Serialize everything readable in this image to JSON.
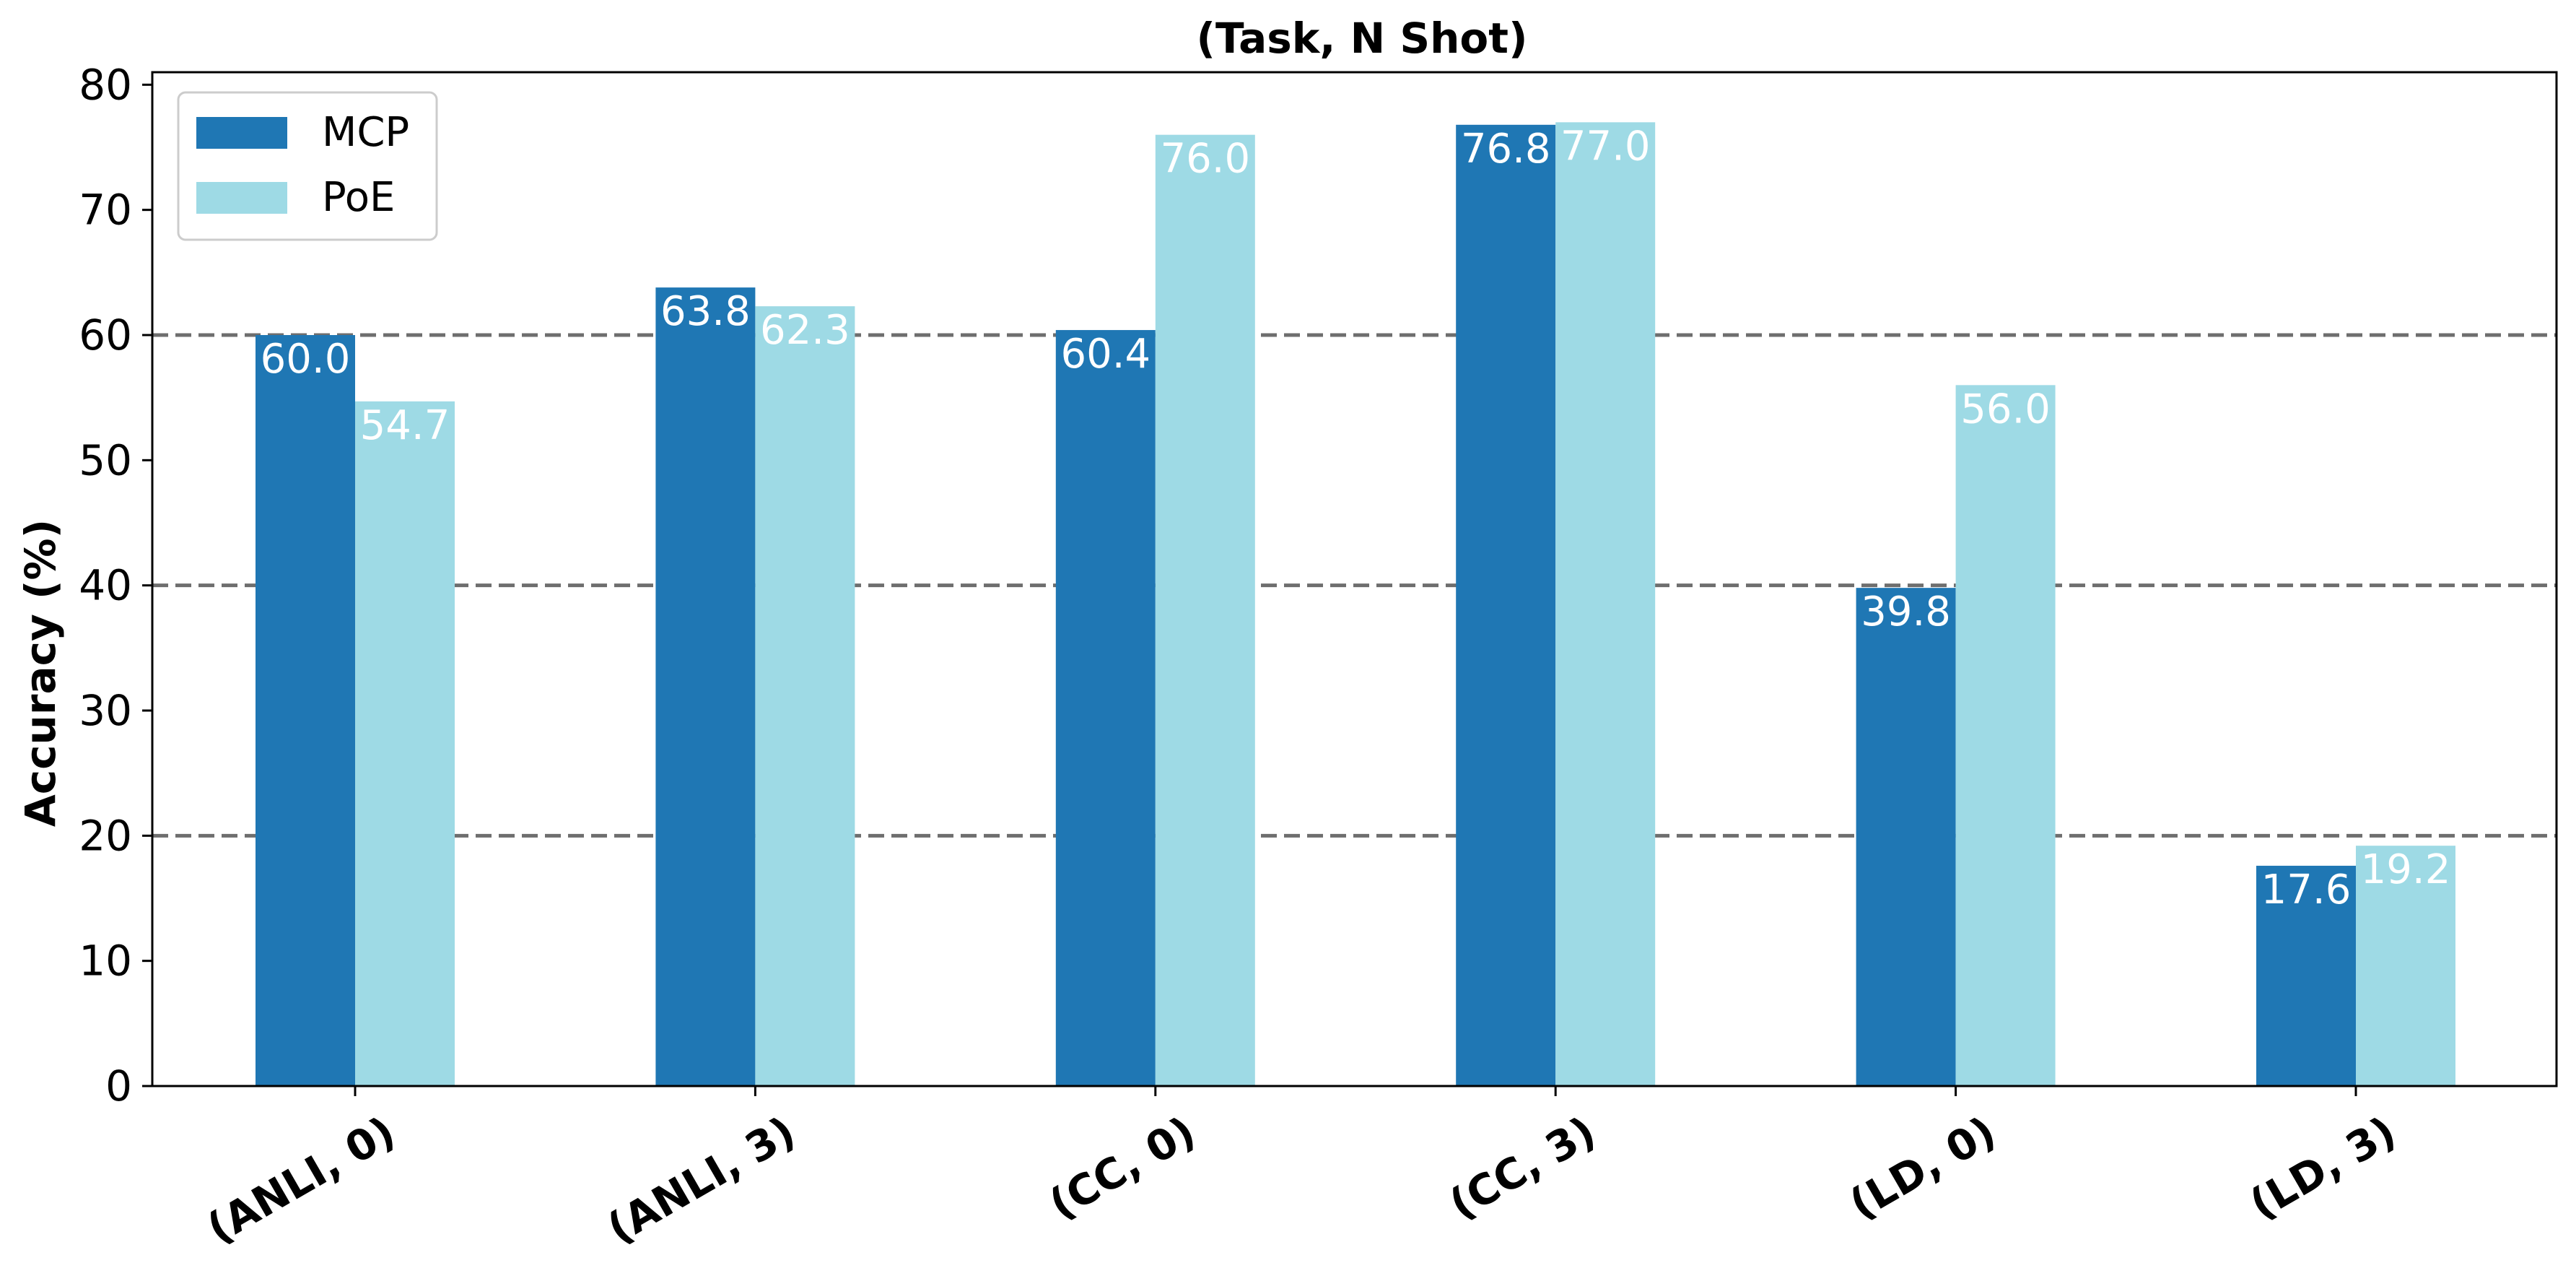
{
  "chart_data": {
    "type": "bar",
    "title": "(Task, N Shot)",
    "xlabel": "",
    "ylabel": "Accuracy (%)",
    "categories": [
      "(ANLI, 0)",
      "(ANLI, 3)",
      "(CC, 0)",
      "(CC, 3)",
      "(LD, 0)",
      "(LD, 3)"
    ],
    "series": [
      {
        "name": "MCP",
        "color": "#1f77b4",
        "values": [
          60.0,
          63.8,
          60.4,
          76.8,
          39.8,
          17.6
        ]
      },
      {
        "name": "PoE",
        "color": "#9edae5",
        "values": [
          54.7,
          62.3,
          76.0,
          77.0,
          56.0,
          19.2
        ]
      }
    ],
    "ylim": [
      0,
      81
    ],
    "yticks": [
      0,
      10,
      20,
      30,
      40,
      50,
      60,
      70,
      80
    ],
    "hlines": [
      20,
      40,
      60
    ],
    "value_labels": [
      "60.0",
      "63.8",
      "60.4",
      "76.8",
      "39.8",
      "17.6",
      "54.7",
      "62.3",
      "76.0",
      "77.0",
      "56.0",
      "19.2"
    ],
    "grid": false,
    "legend": "top-left"
  }
}
